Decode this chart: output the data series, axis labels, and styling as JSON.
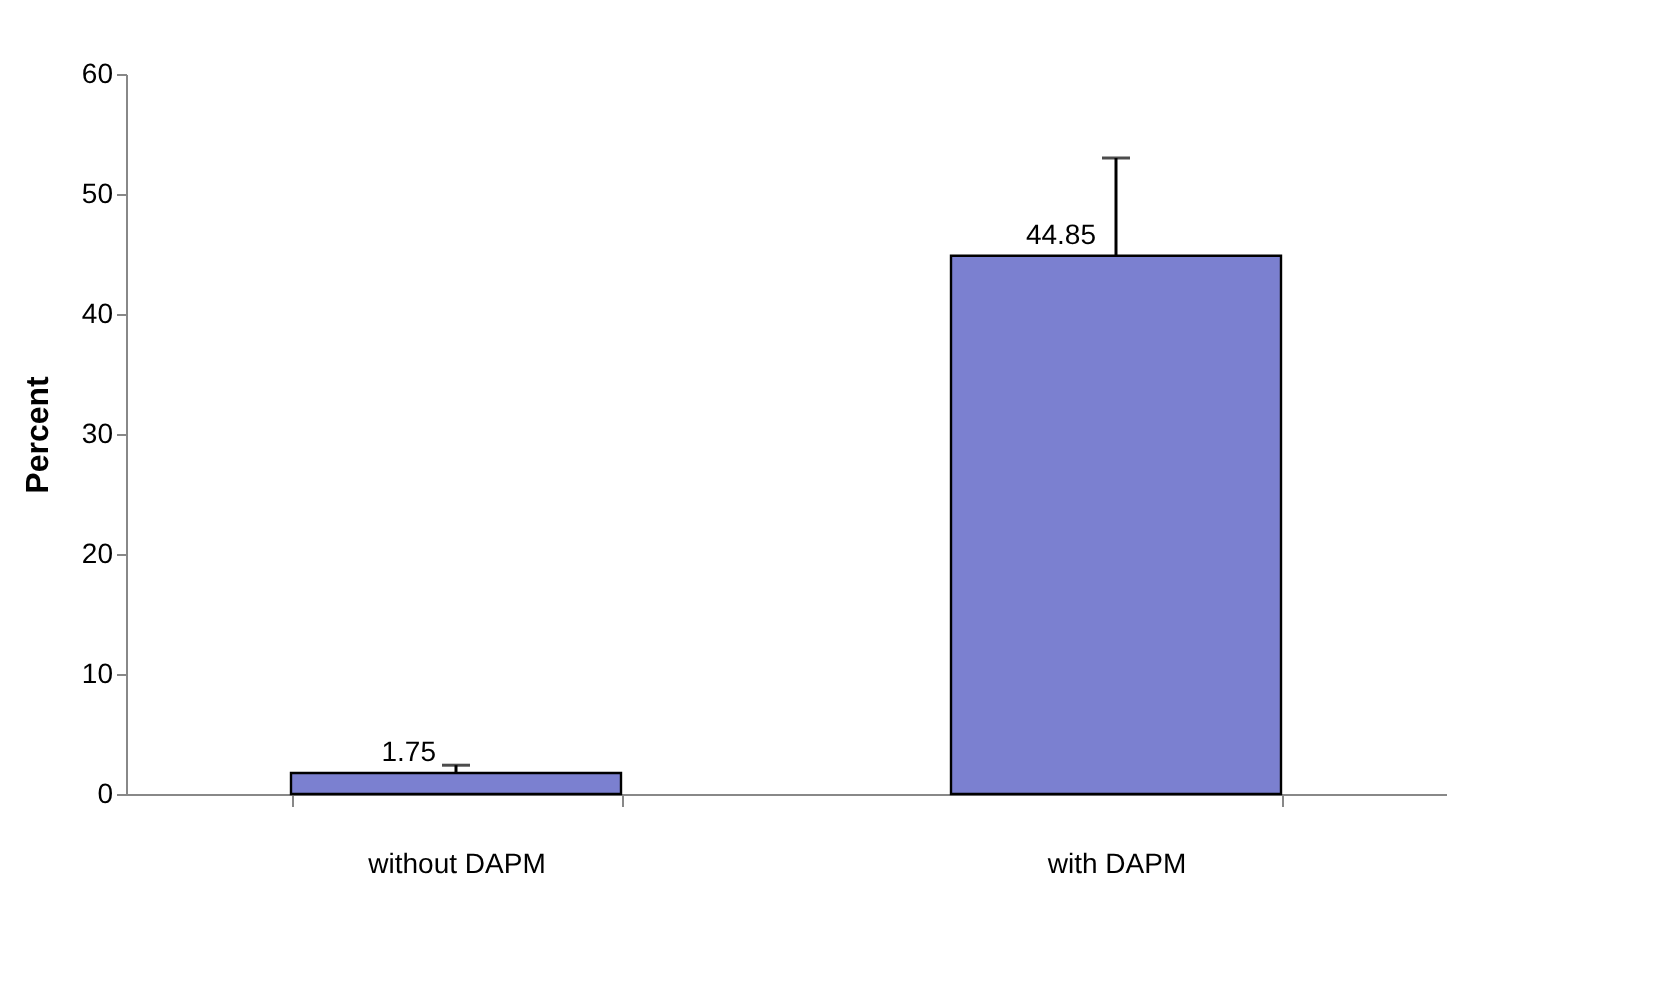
{
  "chart_data": {
    "type": "bar",
    "ylabel": "Percent",
    "categories": [
      "without DAPM",
      "with DAPM"
    ],
    "values": [
      1.75,
      44.85
    ],
    "color": "#7b80d0",
    "errors": [
      [
        1.75,
        2.4
      ],
      [
        44.85,
        53
      ]
    ],
    "data_labels": true,
    "ylim": [
      0,
      60
    ],
    "yticks": [
      0,
      10,
      20,
      30,
      40,
      50,
      60
    ],
    "grid": false
  }
}
